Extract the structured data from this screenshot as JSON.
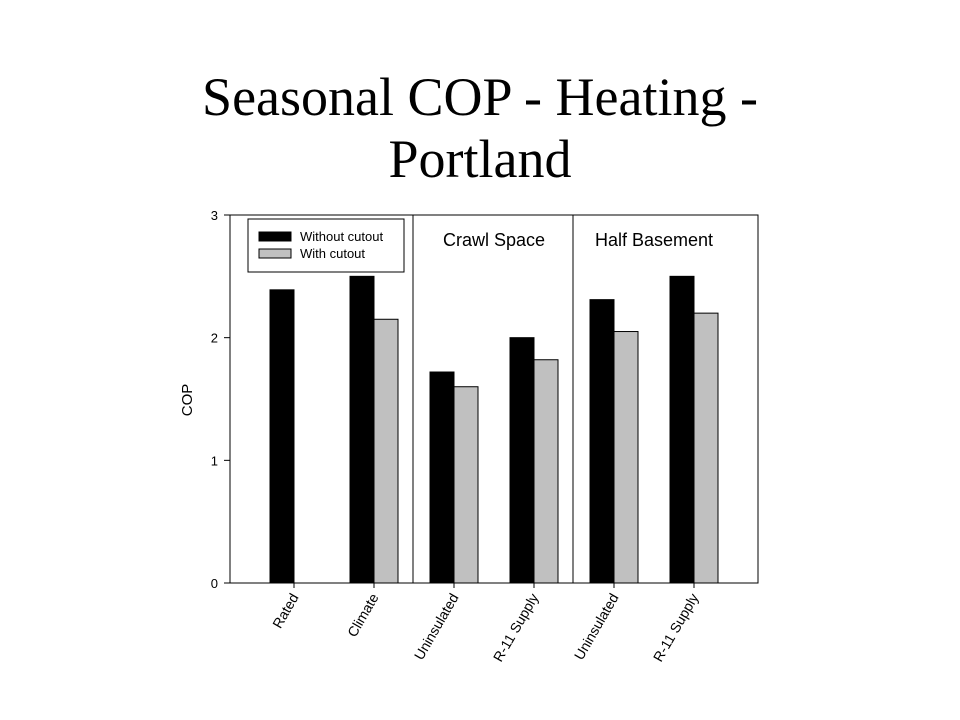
{
  "title": {
    "line1": "Seasonal COP - Heating -",
    "line2": "Portland"
  },
  "chart_data": {
    "type": "bar",
    "ylabel": "COP",
    "xlabel": "",
    "ylim": [
      0,
      3
    ],
    "yticks": [
      0,
      1,
      2,
      3
    ],
    "grid": false,
    "legend_position": "top-left",
    "categories": [
      "Rated",
      "Climate",
      "Uninsulated",
      "R-11 Supply",
      "Uninsulated",
      "R-11 Supply"
    ],
    "groups": [
      {
        "label": "",
        "categories": [
          0,
          1
        ]
      },
      {
        "label": "Crawl Space",
        "categories": [
          2,
          3
        ]
      },
      {
        "label": "Half Basement",
        "categories": [
          4,
          5
        ]
      }
    ],
    "series": [
      {
        "name": "Without cutout",
        "color": "#000000",
        "values": [
          2.39,
          2.5,
          1.72,
          2.0,
          2.31,
          2.5
        ]
      },
      {
        "name": "With cutout",
        "color": "#c0c0c0",
        "values": [
          null,
          2.15,
          1.6,
          1.82,
          2.05,
          2.2
        ]
      }
    ]
  }
}
